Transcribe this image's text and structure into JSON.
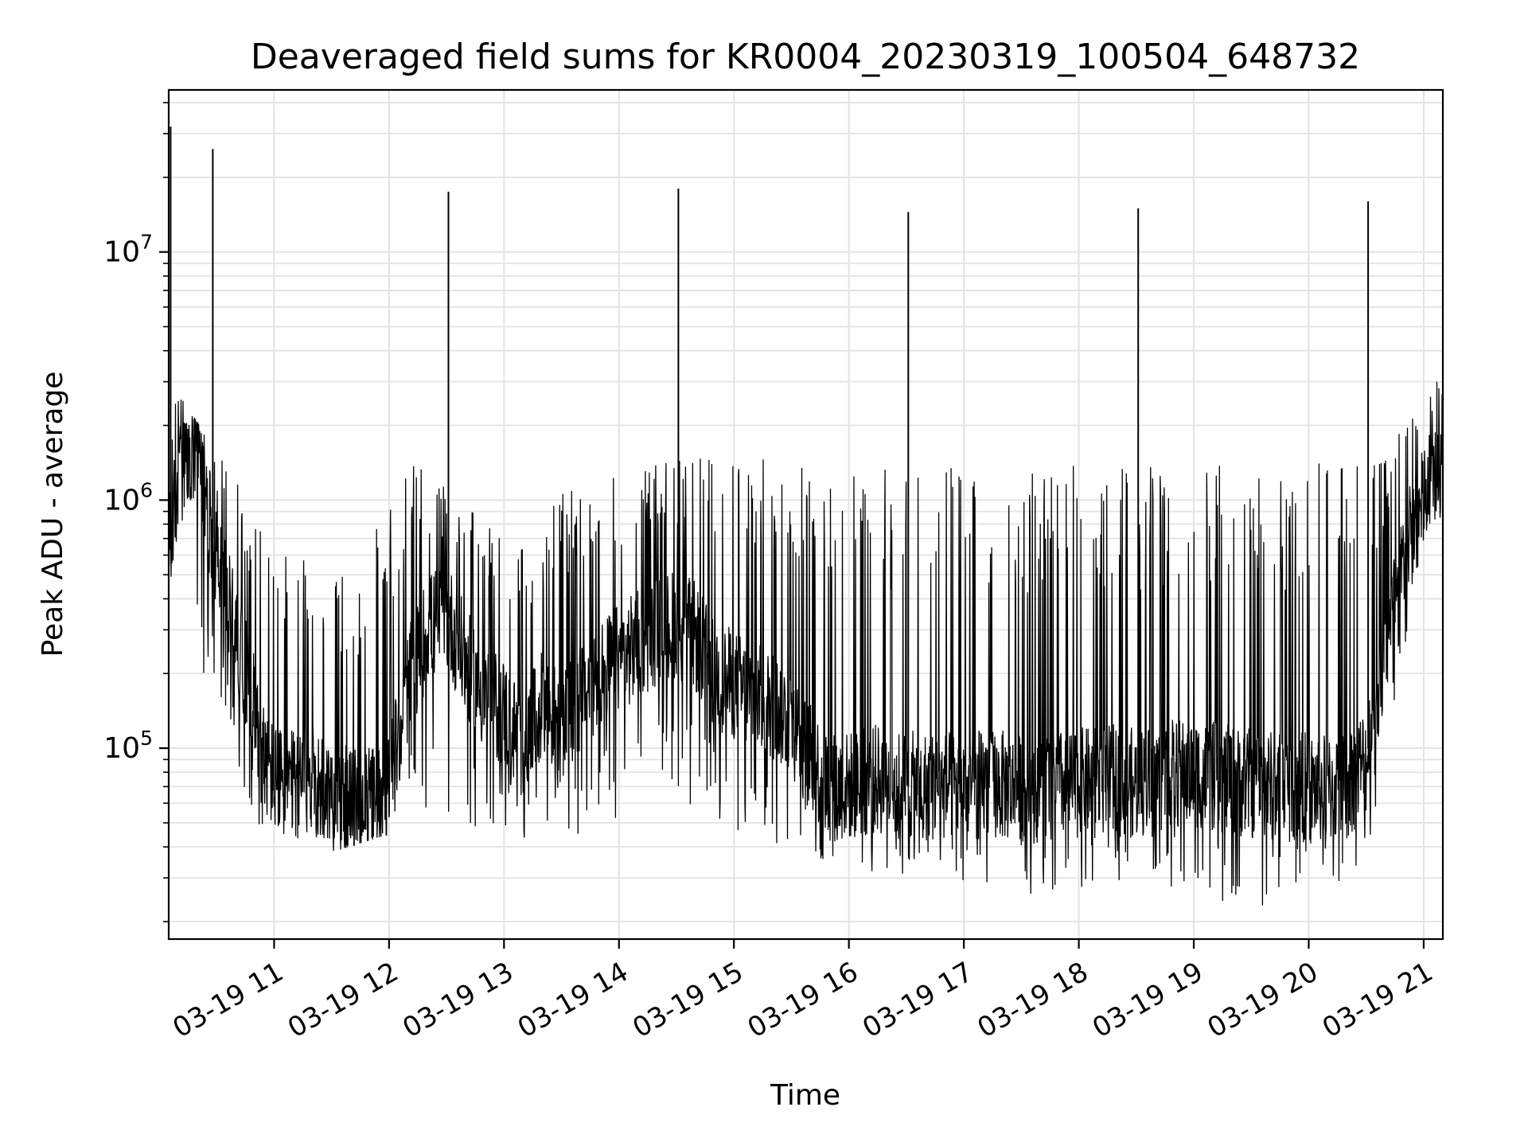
{
  "chart_data": {
    "type": "line",
    "title": "Deaveraged field sums for KR0004_20230319_100504_648732",
    "xlabel": "Time",
    "ylabel": "Peak ADU - average",
    "yscale": "log",
    "ylim": [
      17000,
      45000000
    ],
    "xlim": [
      "2023-03-19 10:05",
      "2023-03-19 21:10"
    ],
    "grid": true,
    "line_color": "#000000",
    "x_ticks": [
      {
        "value": "2023-03-19 11:00",
        "label": "03-19 11"
      },
      {
        "value": "2023-03-19 12:00",
        "label": "03-19 12"
      },
      {
        "value": "2023-03-19 13:00",
        "label": "03-19 13"
      },
      {
        "value": "2023-03-19 14:00",
        "label": "03-19 14"
      },
      {
        "value": "2023-03-19 15:00",
        "label": "03-19 15"
      },
      {
        "value": "2023-03-19 16:00",
        "label": "03-19 16"
      },
      {
        "value": "2023-03-19 17:00",
        "label": "03-19 17"
      },
      {
        "value": "2023-03-19 18:00",
        "label": "03-19 18"
      },
      {
        "value": "2023-03-19 19:00",
        "label": "03-19 19"
      },
      {
        "value": "2023-03-19 20:00",
        "label": "03-19 20"
      },
      {
        "value": "2023-03-19 21:00",
        "label": "03-19 21"
      }
    ],
    "y_ticks": [
      {
        "value": 100000,
        "base": "10",
        "exp": "5"
      },
      {
        "value": 1000000,
        "base": "10",
        "exp": "6"
      },
      {
        "value": 10000000,
        "base": "10",
        "exp": "7"
      }
    ],
    "series": [
      {
        "x": [
          "2023-03-19 10:05",
          "2023-03-19 10:10",
          "2023-03-19 10:15",
          "2023-03-19 10:20",
          "2023-03-19 10:25",
          "2023-03-19 10:30",
          "2023-03-19 10:35",
          "2023-03-19 10:40",
          "2023-03-19 10:45",
          "2023-03-19 10:50",
          "2023-03-19 10:55",
          "2023-03-19 11:00",
          "2023-03-19 11:10",
          "2023-03-19 11:20",
          "2023-03-19 11:30",
          "2023-03-19 11:40",
          "2023-03-19 11:50",
          "2023-03-19 12:00",
          "2023-03-19 12:10",
          "2023-03-19 12:20",
          "2023-03-19 12:30",
          "2023-03-19 12:40",
          "2023-03-19 12:50",
          "2023-03-19 13:00",
          "2023-03-19 13:10",
          "2023-03-19 13:20",
          "2023-03-19 13:30",
          "2023-03-19 13:40",
          "2023-03-19 13:50",
          "2023-03-19 14:00",
          "2023-03-19 14:10",
          "2023-03-19 14:20",
          "2023-03-19 14:30",
          "2023-03-19 14:40",
          "2023-03-19 14:50",
          "2023-03-19 15:00",
          "2023-03-19 15:10",
          "2023-03-19 15:20",
          "2023-03-19 15:30",
          "2023-03-19 15:40",
          "2023-03-19 15:50",
          "2023-03-19 16:00",
          "2023-03-19 16:15",
          "2023-03-19 16:30",
          "2023-03-19 16:45",
          "2023-03-19 17:00",
          "2023-03-19 17:15",
          "2023-03-19 17:30",
          "2023-03-19 17:45",
          "2023-03-19 18:00",
          "2023-03-19 18:15",
          "2023-03-19 18:30",
          "2023-03-19 18:45",
          "2023-03-19 19:00",
          "2023-03-19 19:15",
          "2023-03-19 19:30",
          "2023-03-19 19:45",
          "2023-03-19 20:00",
          "2023-03-19 20:10",
          "2023-03-19 20:20",
          "2023-03-19 20:30",
          "2023-03-19 20:40",
          "2023-03-19 20:50",
          "2023-03-19 21:00",
          "2023-03-19 21:05",
          "2023-03-19 21:10"
        ],
        "y": [
          600000,
          1200000,
          1300000,
          1600000,
          900000,
          600000,
          400000,
          300000,
          200000,
          150000,
          90000,
          75000,
          70000,
          75000,
          65000,
          60000,
          60000,
          70000,
          180000,
          300000,
          350000,
          220000,
          160000,
          140000,
          100000,
          150000,
          120000,
          160000,
          200000,
          230000,
          260000,
          300000,
          320000,
          280000,
          200000,
          180000,
          160000,
          150000,
          130000,
          90000,
          70000,
          70000,
          75000,
          70000,
          70000,
          70000,
          72000,
          68000,
          70000,
          72000,
          75000,
          72000,
          78000,
          80000,
          75000,
          72000,
          70000,
          70000,
          68000,
          72000,
          90000,
          250000,
          600000,
          1000000,
          1300000,
          1600000
        ]
      }
    ],
    "spikes": [
      {
        "x": "2023-03-19 10:06",
        "y": 32000000
      },
      {
        "x": "2023-03-19 10:28",
        "y": 26000000
      },
      {
        "x": "2023-03-19 12:31",
        "y": 17500000
      },
      {
        "x": "2023-03-19 14:31",
        "y": 18000000
      },
      {
        "x": "2023-03-19 16:31",
        "y": 14500000
      },
      {
        "x": "2023-03-19 18:31",
        "y": 15000000
      },
      {
        "x": "2023-03-19 20:31",
        "y": 16000000
      }
    ],
    "upper_envelope": [
      {
        "x": "2023-03-19 10:10",
        "y": 2700000
      },
      {
        "x": "2023-03-19 11:00",
        "y": 700000
      },
      {
        "x": "2023-03-19 11:40",
        "y": 500000
      },
      {
        "x": "2023-03-19 12:10",
        "y": 1500000
      },
      {
        "x": "2023-03-19 13:00",
        "y": 700000
      },
      {
        "x": "2023-03-19 13:40",
        "y": 1200000
      },
      {
        "x": "2023-03-19 14:30",
        "y": 1500000
      },
      {
        "x": "2023-03-19 15:20",
        "y": 1500000
      },
      {
        "x": "2023-03-19 16:00",
        "y": 1400000
      },
      {
        "x": "2023-03-19 17:00",
        "y": 1400000
      },
      {
        "x": "2023-03-19 18:00",
        "y": 1400000
      },
      {
        "x": "2023-03-19 19:00",
        "y": 1400000
      },
      {
        "x": "2023-03-19 20:00",
        "y": 1400000
      },
      {
        "x": "2023-03-19 20:40",
        "y": 1600000
      },
      {
        "x": "2023-03-19 21:10",
        "y": 3300000
      }
    ],
    "lower_envelope": [
      {
        "x": "2023-03-19 10:10",
        "y": 400000
      },
      {
        "x": "2023-03-19 10:50",
        "y": 50000
      },
      {
        "x": "2023-03-19 11:30",
        "y": 38000
      },
      {
        "x": "2023-03-19 12:00",
        "y": 45000
      },
      {
        "x": "2023-03-19 13:00",
        "y": 45000
      },
      {
        "x": "2023-03-19 13:30",
        "y": 40000
      },
      {
        "x": "2023-03-19 14:30",
        "y": 60000
      },
      {
        "x": "2023-03-19 15:30",
        "y": 35000
      },
      {
        "x": "2023-03-19 16:30",
        "y": 30000
      },
      {
        "x": "2023-03-19 17:30",
        "y": 25000
      },
      {
        "x": "2023-03-19 18:30",
        "y": 30000
      },
      {
        "x": "2023-03-19 19:30",
        "y": 22000
      },
      {
        "x": "2023-03-19 20:30",
        "y": 30000
      },
      {
        "x": "2023-03-19 21:00",
        "y": 700000
      }
    ]
  }
}
